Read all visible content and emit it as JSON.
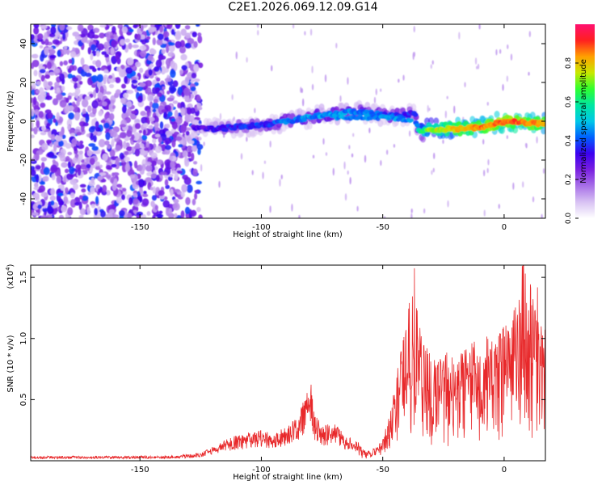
{
  "title": "C2E1.2026.069.12.09.G14",
  "colors": {
    "snr_line": "#e8282a",
    "axis": "#000000",
    "colormap": [
      "#ffffff",
      "#d8c2f3",
      "#a870e8",
      "#7a20e0",
      "#3c00f0",
      "#0060ff",
      "#00c8e8",
      "#00e8a0",
      "#30ff30",
      "#c8e800",
      "#ffa000",
      "#ff2020",
      "#ff1070"
    ]
  },
  "chart_data": [
    {
      "type": "heatmap",
      "title": "",
      "xlabel": "Height of straight line (km)",
      "ylabel": "Frequency (Hz)",
      "xlim": [
        -195,
        17
      ],
      "ylim": [
        -50,
        50
      ],
      "xticks": [
        -150,
        -100,
        -50,
        0
      ],
      "xtick_labels": [
        "-150",
        "-100",
        "-50",
        "0"
      ],
      "yticks": [
        -40,
        -20,
        0,
        20,
        40
      ],
      "ytick_labels": [
        "-40",
        "-20",
        "0",
        "20",
        "40"
      ],
      "colorbar": {
        "label": "Normalized spectral amplitude",
        "range": [
          0,
          1
        ],
        "ticks": [
          0.0,
          0.2,
          0.4,
          0.6,
          0.8
        ],
        "tick_labels": [
          "0.0",
          "0.2",
          "0.4",
          "0.6",
          "0.8"
        ]
      },
      "noise_region_x": [
        -195,
        -125
      ],
      "ridge": {
        "x": [
          -128,
          -120,
          -110,
          -100,
          -90,
          -80,
          -70,
          -62,
          -55,
          -48,
          -42,
          -37,
          -35,
          -30,
          -20,
          -10,
          0,
          10,
          17
        ],
        "frequency": [
          -3,
          -4,
          -3,
          -2,
          0,
          2,
          4,
          5,
          4,
          3,
          3,
          4,
          -5,
          -4,
          -4,
          -3,
          0,
          -1,
          -1
        ],
        "amplitude": [
          0.28,
          0.32,
          0.36,
          0.38,
          0.42,
          0.44,
          0.46,
          0.44,
          0.42,
          0.4,
          0.38,
          0.35,
          0.55,
          0.72,
          0.8,
          0.84,
          0.9,
          0.86,
          0.82
        ]
      }
    },
    {
      "type": "line",
      "title": "",
      "xlabel": "Height of straight line (km)",
      "ylabel": "SNR (10 * v/v)",
      "scale_label": "(x10",
      "scale_exponent": "4",
      "scale_close": ")",
      "xlim": [
        -195,
        17
      ],
      "ylim": [
        0,
        1.6
      ],
      "xticks": [
        -150,
        -100,
        -50,
        0
      ],
      "xtick_labels": [
        "-150",
        "-100",
        "-50",
        "0"
      ],
      "yticks": [
        0.5,
        1.0,
        1.5
      ],
      "ytick_labels": [
        "0.5",
        "1.0",
        "1.5"
      ],
      "series": [
        {
          "name": "SNR",
          "x": [
            -195,
            -180,
            -160,
            -140,
            -130,
            -125,
            -120,
            -115,
            -110,
            -105,
            -100,
            -95,
            -90,
            -85,
            -82,
            -80,
            -78,
            -75,
            -70,
            -65,
            -60,
            -58,
            -55,
            -52,
            -50,
            -47,
            -45,
            -42,
            -40,
            -38,
            -37,
            -36,
            -35,
            -33,
            -30,
            -28,
            -25,
            -22,
            -20,
            -15,
            -10,
            -5,
            0,
            3,
            5,
            7,
            8,
            10,
            12,
            14,
            15,
            16,
            17
          ],
          "values": [
            0.03,
            0.03,
            0.03,
            0.03,
            0.04,
            0.05,
            0.09,
            0.14,
            0.16,
            0.18,
            0.2,
            0.17,
            0.22,
            0.27,
            0.42,
            0.55,
            0.3,
            0.22,
            0.24,
            0.16,
            0.12,
            0.08,
            0.07,
            0.1,
            0.16,
            0.32,
            0.55,
            0.8,
            1.0,
            1.22,
            1.35,
            1.1,
            0.95,
            0.8,
            0.72,
            0.68,
            0.74,
            0.76,
            0.72,
            0.78,
            0.84,
            0.86,
            0.92,
            0.96,
            1.1,
            1.25,
            1.55,
            1.3,
            1.1,
            1.2,
            0.95,
            1.05,
            1.0
          ]
        }
      ]
    }
  ]
}
